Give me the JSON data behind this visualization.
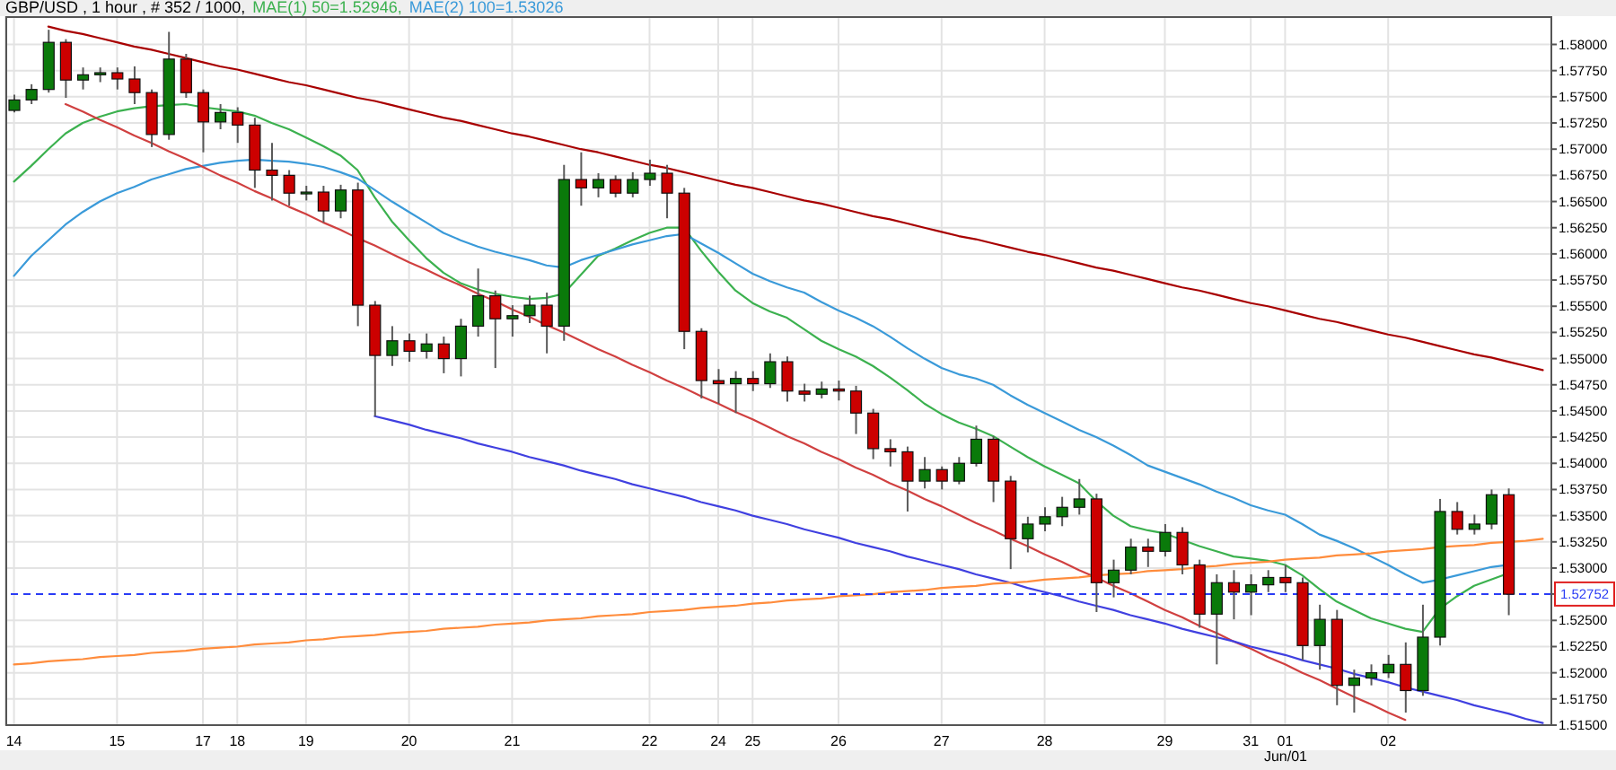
{
  "chart_data": {
    "type": "candlestick",
    "title": "GBP/USD , 1 hour , # 352 / 1000,",
    "categories": [
      "14",
      null,
      null,
      null,
      null,
      null,
      "15",
      null,
      null,
      null,
      null,
      "17",
      null,
      "18",
      null,
      null,
      null,
      "19",
      null,
      null,
      null,
      null,
      null,
      "20",
      null,
      null,
      null,
      null,
      null,
      "21",
      null,
      null,
      null,
      null,
      null,
      null,
      null,
      "22",
      null,
      null,
      null,
      "24",
      null,
      "25",
      null,
      null,
      null,
      null,
      "26",
      null,
      null,
      null,
      null,
      null,
      "27",
      null,
      null,
      null,
      null,
      null,
      "28",
      null,
      null,
      null,
      null,
      null,
      null,
      "29",
      null,
      null,
      null,
      null,
      "31",
      null,
      "01",
      null,
      null,
      null,
      null,
      null,
      "02",
      null,
      null,
      null,
      null,
      null,
      null,
      null,
      null,
      null
    ],
    "ohlc": [
      [
        1.5737,
        1.5752,
        1.5735,
        1.5747
      ],
      [
        1.5747,
        1.5762,
        1.5743,
        1.5757
      ],
      [
        1.5757,
        1.5814,
        1.5754,
        1.5802
      ],
      [
        1.5802,
        1.5805,
        1.5749,
        1.5766
      ],
      [
        1.5766,
        1.5778,
        1.5757,
        1.5771
      ],
      [
        1.5771,
        1.5778,
        1.5764,
        1.5773
      ],
      [
        1.5773,
        1.5778,
        1.5757,
        1.5767
      ],
      [
        1.5767,
        1.5779,
        1.5743,
        1.5754
      ],
      [
        1.5754,
        1.5757,
        1.5702,
        1.5714
      ],
      [
        1.5714,
        1.5812,
        1.5709,
        1.5786
      ],
      [
        1.5786,
        1.5791,
        1.5749,
        1.5754
      ],
      [
        1.5754,
        1.5757,
        1.5697,
        1.5726
      ],
      [
        1.5726,
        1.5743,
        1.5719,
        1.5735
      ],
      [
        1.5735,
        1.574,
        1.5706,
        1.5723
      ],
      [
        1.5723,
        1.573,
        1.5663,
        1.568
      ],
      [
        1.568,
        1.5706,
        1.5651,
        1.5675
      ],
      [
        1.5675,
        1.568,
        1.5646,
        1.5658
      ],
      [
        1.5658,
        1.5665,
        1.5651,
        1.5659
      ],
      [
        1.5659,
        1.5665,
        1.563,
        1.5641
      ],
      [
        1.5641,
        1.5666,
        1.5634,
        1.5661
      ],
      [
        1.5661,
        1.5668,
        1.5531,
        1.5551
      ],
      [
        1.5551,
        1.5555,
        1.5445,
        1.5503
      ],
      [
        1.5503,
        1.5531,
        1.5493,
        1.5517
      ],
      [
        1.5517,
        1.5524,
        1.5497,
        1.5507
      ],
      [
        1.5507,
        1.5524,
        1.55,
        1.5514
      ],
      [
        1.5514,
        1.5521,
        1.5486,
        1.55
      ],
      [
        1.55,
        1.5538,
        1.5483,
        1.5531
      ],
      [
        1.5531,
        1.5586,
        1.5521,
        1.556
      ],
      [
        1.556,
        1.5565,
        1.5491,
        1.5538
      ],
      [
        1.5538,
        1.5551,
        1.5521,
        1.5541
      ],
      [
        1.5541,
        1.556,
        1.5534,
        1.5551
      ],
      [
        1.5551,
        1.5563,
        1.5505,
        1.5531
      ],
      [
        1.5531,
        1.5685,
        1.5517,
        1.5671
      ],
      [
        1.5671,
        1.5697,
        1.5646,
        1.5663
      ],
      [
        1.5663,
        1.5677,
        1.5654,
        1.5671
      ],
      [
        1.5671,
        1.5675,
        1.5654,
        1.5658
      ],
      [
        1.5658,
        1.5678,
        1.5654,
        1.5671
      ],
      [
        1.5671,
        1.569,
        1.5665,
        1.5677
      ],
      [
        1.5677,
        1.5685,
        1.5634,
        1.5658
      ],
      [
        1.5658,
        1.5663,
        1.5509,
        1.5526
      ],
      [
        1.5526,
        1.5529,
        1.5462,
        1.5479
      ],
      [
        1.5479,
        1.549,
        1.5457,
        1.5476
      ],
      [
        1.5476,
        1.5488,
        1.5448,
        1.5481
      ],
      [
        1.5481,
        1.5488,
        1.5469,
        1.5476
      ],
      [
        1.5476,
        1.5505,
        1.5472,
        1.5497
      ],
      [
        1.5497,
        1.5502,
        1.5459,
        1.5469
      ],
      [
        1.5469,
        1.5476,
        1.5459,
        1.5466
      ],
      [
        1.5466,
        1.5478,
        1.5462,
        1.5471
      ],
      [
        1.5471,
        1.5479,
        1.546,
        1.5469
      ],
      [
        1.5469,
        1.5474,
        1.5428,
        1.5448
      ],
      [
        1.5448,
        1.5452,
        1.5404,
        1.5414
      ],
      [
        1.5414,
        1.5423,
        1.5397,
        1.5411
      ],
      [
        1.5411,
        1.5416,
        1.5354,
        1.5383
      ],
      [
        1.5383,
        1.5406,
        1.5376,
        1.5394
      ],
      [
        1.5394,
        1.5397,
        1.5375,
        1.5383
      ],
      [
        1.5383,
        1.5406,
        1.538,
        1.54
      ],
      [
        1.54,
        1.5436,
        1.5397,
        1.5423
      ],
      [
        1.5423,
        1.5426,
        1.5363,
        1.5383
      ],
      [
        1.5383,
        1.5388,
        1.5299,
        1.5328
      ],
      [
        1.5328,
        1.5349,
        1.5315,
        1.5342
      ],
      [
        1.5342,
        1.5358,
        1.5335,
        1.5349
      ],
      [
        1.5349,
        1.5368,
        1.534,
        1.5358
      ],
      [
        1.5358,
        1.5385,
        1.5351,
        1.5366
      ],
      [
        1.5366,
        1.5371,
        1.5258,
        1.5286
      ],
      [
        1.5286,
        1.5308,
        1.5272,
        1.5298
      ],
      [
        1.5298,
        1.5328,
        1.5294,
        1.532
      ],
      [
        1.532,
        1.5328,
        1.5301,
        1.5316
      ],
      [
        1.5316,
        1.5342,
        1.5311,
        1.5334
      ],
      [
        1.5334,
        1.5339,
        1.5294,
        1.5303
      ],
      [
        1.5303,
        1.5308,
        1.5243,
        1.5256
      ],
      [
        1.5256,
        1.5294,
        1.5208,
        1.5286
      ],
      [
        1.5286,
        1.5298,
        1.5251,
        1.5277
      ],
      [
        1.5277,
        1.5294,
        1.5255,
        1.5284
      ],
      [
        1.5284,
        1.5298,
        1.5277,
        1.5291
      ],
      [
        1.5291,
        1.5303,
        1.5277,
        1.5286
      ],
      [
        1.5286,
        1.5291,
        1.5212,
        1.5226
      ],
      [
        1.5226,
        1.5265,
        1.5203,
        1.5251
      ],
      [
        1.5251,
        1.526,
        1.5169,
        1.5188
      ],
      [
        1.5188,
        1.5203,
        1.5162,
        1.5195
      ],
      [
        1.5195,
        1.5208,
        1.5188,
        1.52
      ],
      [
        1.52,
        1.5217,
        1.5195,
        1.5208
      ],
      [
        1.5208,
        1.5229,
        1.5162,
        1.5183
      ],
      [
        1.5183,
        1.5265,
        1.5178,
        1.5234
      ],
      [
        1.5234,
        1.5366,
        1.5226,
        1.5354
      ],
      [
        1.5354,
        1.5363,
        1.5332,
        1.5337
      ],
      [
        1.5337,
        1.5351,
        1.5332,
        1.5342
      ],
      [
        1.5342,
        1.5375,
        1.5337,
        1.537
      ],
      [
        1.537,
        1.5376,
        1.5255,
        1.5275
      ],
      null,
      null
    ],
    "colors": [
      "#0a7a0a",
      "#0a7a0a",
      "#0a7a0a",
      "#cc0000",
      "#0a7a0a",
      "#0a7a0a",
      "#cc0000",
      "#cc0000",
      "#cc0000",
      "#0a7a0a",
      "#cc0000",
      "#cc0000",
      "#0a7a0a",
      "#cc0000",
      "#cc0000",
      "#cc0000",
      "#cc0000",
      "#0a7a0a",
      "#cc0000",
      "#0a7a0a",
      "#cc0000",
      "#cc0000",
      "#0a7a0a",
      "#cc0000",
      "#0a7a0a",
      "#cc0000",
      "#0a7a0a",
      "#0a7a0a",
      "#cc0000",
      "#0a7a0a",
      "#0a7a0a",
      "#cc0000",
      "#0a7a0a",
      "#cc0000",
      "#0a7a0a",
      "#cc0000",
      "#0a7a0a",
      "#0a7a0a",
      "#cc0000",
      "#cc0000",
      "#cc0000",
      "#cc0000",
      "#0a7a0a",
      "#cc0000",
      "#0a7a0a",
      "#cc0000",
      "#cc0000",
      "#0a7a0a",
      "#cc0000",
      "#cc0000",
      "#cc0000",
      "#cc0000",
      "#cc0000",
      "#0a7a0a",
      "#cc0000",
      "#0a7a0a",
      "#0a7a0a",
      "#cc0000",
      "#cc0000",
      "#0a7a0a",
      "#0a7a0a",
      "#0a7a0a",
      "#0a7a0a",
      "#cc0000",
      "#0a7a0a",
      "#0a7a0a",
      "#cc0000",
      "#0a7a0a",
      "#cc0000",
      "#cc0000",
      "#0a7a0a",
      "#cc0000",
      "#0a7a0a",
      "#0a7a0a",
      "#cc0000",
      "#cc0000",
      "#0a7a0a",
      "#cc0000",
      "#0a7a0a",
      "#0a7a0a",
      "#0a7a0a",
      "#cc0000",
      "#0a7a0a",
      "#0a7a0a",
      "#cc0000",
      "#0a7a0a",
      "#0a7a0a",
      "#cc0000",
      null,
      null
    ],
    "series": [
      {
        "name": "MAE(1) 50=1.52946,",
        "type": "line",
        "color": "#3cb14f",
        "values": [
          1.5669,
          1.5684,
          1.57,
          1.5715,
          1.5725,
          1.5731,
          1.5736,
          1.5739,
          1.5741,
          1.5742,
          1.5743,
          1.574,
          1.5738,
          1.5736,
          1.5732,
          1.5725,
          1.5719,
          1.5711,
          1.5703,
          1.5694,
          1.568,
          1.5654,
          1.5631,
          1.5613,
          1.5596,
          1.5582,
          1.5572,
          1.5566,
          1.5562,
          1.5559,
          1.5557,
          1.5558,
          1.5562,
          1.558,
          1.5598,
          1.5605,
          1.5613,
          1.562,
          1.5625,
          1.5625,
          1.5603,
          1.5583,
          1.5565,
          1.5553,
          1.5545,
          1.5539,
          1.5528,
          1.5517,
          1.5509,
          1.5502,
          1.5493,
          1.5482,
          1.547,
          1.5457,
          1.5447,
          1.5439,
          1.5433,
          1.5426,
          1.5416,
          1.5406,
          1.5397,
          1.5389,
          1.5381,
          1.5364,
          1.535,
          1.534,
          1.5336,
          1.5333,
          1.5327,
          1.5321,
          1.5316,
          1.5311,
          1.5309,
          1.5307,
          1.5303,
          1.5293,
          1.528,
          1.5268,
          1.526,
          1.5252,
          1.5247,
          1.5242,
          1.5239,
          1.5261,
          1.5273,
          1.5283,
          1.5289,
          1.5295,
          null,
          null
        ]
      },
      {
        "name": "MAE(2) 100=1.53026",
        "type": "line",
        "color": "#3a9ad9",
        "values": [
          1.5579,
          1.5598,
          1.5613,
          1.5628,
          1.564,
          1.565,
          1.5658,
          1.5664,
          1.5671,
          1.5676,
          1.5681,
          1.5684,
          1.5687,
          1.5689,
          1.569,
          1.5689,
          1.5688,
          1.5686,
          1.5683,
          1.5678,
          1.5672,
          1.5661,
          1.565,
          1.564,
          1.563,
          1.562,
          1.5613,
          1.5607,
          1.5602,
          1.5598,
          1.5594,
          1.5589,
          1.5587,
          1.5594,
          1.5599,
          1.5604,
          1.5609,
          1.5613,
          1.5617,
          1.5619,
          1.561,
          1.5601,
          1.5591,
          1.5581,
          1.5574,
          1.5568,
          1.5563,
          1.5554,
          1.5546,
          1.5539,
          1.5531,
          1.5521,
          1.551,
          1.55,
          1.5491,
          1.5485,
          1.5481,
          1.5475,
          1.5465,
          1.5456,
          1.5448,
          1.544,
          1.5432,
          1.5425,
          1.5417,
          1.5408,
          1.5398,
          1.5392,
          1.5386,
          1.538,
          1.5373,
          1.5367,
          1.536,
          1.5355,
          1.5351,
          1.5342,
          1.5332,
          1.5326,
          1.5319,
          1.5311,
          1.5303,
          1.5294,
          1.5286,
          1.5289,
          1.5293,
          1.5297,
          1.5301,
          1.5303,
          null,
          null
        ]
      },
      {
        "type": "line",
        "color": "#a80000",
        "values": [
          null,
          null,
          1.5817,
          1.5813,
          1.581,
          1.5806,
          1.5802,
          1.5798,
          1.5795,
          1.5791,
          1.5787,
          1.5783,
          1.5779,
          1.5776,
          1.5772,
          1.5768,
          1.5764,
          1.5761,
          1.5757,
          1.5753,
          1.5749,
          1.5746,
          1.5742,
          1.5738,
          1.5734,
          1.573,
          1.5727,
          1.5723,
          1.5719,
          1.5715,
          1.5712,
          1.5708,
          1.5704,
          1.57,
          1.5697,
          1.5693,
          1.5689,
          1.5685,
          1.5682,
          1.5678,
          1.5674,
          1.567,
          1.5666,
          1.5663,
          1.5659,
          1.5655,
          1.5651,
          1.5648,
          1.5644,
          1.564,
          1.5636,
          1.5633,
          1.5629,
          1.5625,
          1.5621,
          1.5617,
          1.5614,
          1.561,
          1.5606,
          1.5602,
          1.5599,
          1.5595,
          1.5591,
          1.5587,
          1.5584,
          1.558,
          1.5576,
          1.5572,
          1.5568,
          1.5565,
          1.5561,
          1.5557,
          1.5553,
          1.555,
          1.5546,
          1.5542,
          1.5538,
          1.5535,
          1.5531,
          1.5527,
          1.5523,
          1.552,
          1.5516,
          1.5512,
          1.5508,
          1.5504,
          1.5501,
          1.5497,
          1.5493,
          1.5489
        ]
      },
      {
        "type": "line",
        "color": "#d04040",
        "values": [
          null,
          null,
          null,
          1.5743,
          1.5736,
          1.5728,
          1.5721,
          1.5713,
          1.5706,
          1.5698,
          1.5691,
          1.5683,
          1.5675,
          1.5668,
          1.566,
          1.5653,
          1.5645,
          1.5638,
          1.563,
          1.5623,
          1.5615,
          1.5608,
          1.56,
          1.5592,
          1.5585,
          1.5577,
          1.557,
          1.5562,
          1.5555,
          1.5547,
          1.554,
          1.5532,
          1.5525,
          1.5517,
          1.5509,
          1.5502,
          1.5494,
          1.5487,
          1.5479,
          1.5472,
          1.5464,
          1.5457,
          1.5449,
          1.5442,
          1.5434,
          1.5426,
          1.5419,
          1.5411,
          1.5404,
          1.5396,
          1.5389,
          1.5381,
          1.5374,
          1.5366,
          1.5359,
          1.5351,
          1.5343,
          1.5336,
          1.5328,
          1.5321,
          1.5313,
          1.5306,
          1.5298,
          1.5291,
          1.5283,
          1.5276,
          1.5268,
          1.526,
          1.5253,
          1.5245,
          1.5238,
          1.523,
          1.5223,
          1.5215,
          1.5208,
          1.52,
          1.5193,
          1.5185,
          1.5177,
          1.517,
          1.5162,
          1.5155,
          null,
          null,
          null,
          null,
          null,
          null,
          null,
          null
        ]
      },
      {
        "type": "line",
        "color": "#4040e0",
        "values": [
          null,
          null,
          null,
          null,
          null,
          null,
          null,
          null,
          null,
          null,
          null,
          null,
          null,
          null,
          null,
          null,
          null,
          null,
          null,
          null,
          null,
          1.5445,
          1.5441,
          1.5437,
          1.5432,
          1.5428,
          1.5424,
          1.5419,
          1.5415,
          1.5411,
          1.5406,
          1.5402,
          1.5398,
          1.5393,
          1.5389,
          1.5385,
          1.538,
          1.5376,
          1.5372,
          1.5368,
          1.5363,
          1.5359,
          1.5355,
          1.535,
          1.5346,
          1.5342,
          1.5337,
          1.5333,
          1.5329,
          1.5324,
          1.532,
          1.5316,
          1.5311,
          1.5307,
          1.5303,
          1.5299,
          1.5294,
          1.529,
          1.5286,
          1.5281,
          1.5277,
          1.5273,
          1.5268,
          1.5264,
          1.526,
          1.5255,
          1.5251,
          1.5247,
          1.5242,
          1.5238,
          1.5234,
          1.523,
          1.5225,
          1.5221,
          1.5217,
          1.5212,
          1.5208,
          1.5204,
          1.5199,
          1.5195,
          1.5191,
          1.5186,
          1.5182,
          1.5178,
          1.5174,
          1.5169,
          1.5165,
          1.5161,
          1.5156,
          1.5152
        ]
      },
      {
        "type": "line",
        "color": "#ff8c3c",
        "values": [
          1.5208,
          1.5209,
          1.5211,
          1.5212,
          1.5213,
          1.5215,
          1.5216,
          1.5217,
          1.5219,
          1.522,
          1.5221,
          1.5223,
          1.5224,
          1.5225,
          1.5227,
          1.5228,
          1.5229,
          1.5231,
          1.5232,
          1.5234,
          1.5235,
          1.5236,
          1.5238,
          1.5239,
          1.524,
          1.5242,
          1.5243,
          1.5244,
          1.5246,
          1.5247,
          1.5248,
          1.525,
          1.5251,
          1.5252,
          1.5254,
          1.5255,
          1.5256,
          1.5258,
          1.5259,
          1.526,
          1.5262,
          1.5263,
          1.5264,
          1.5266,
          1.5267,
          1.5269,
          1.527,
          1.5271,
          1.5273,
          1.5274,
          1.5275,
          1.5277,
          1.5278,
          1.5279,
          1.5281,
          1.5282,
          1.5283,
          1.5285,
          1.5286,
          1.5287,
          1.5289,
          1.529,
          1.5291,
          1.5293,
          1.5294,
          1.5295,
          1.5297,
          1.5298,
          1.5299,
          1.5301,
          1.5302,
          1.5304,
          1.5305,
          1.5306,
          1.5308,
          1.5309,
          1.531,
          1.5312,
          1.5313,
          1.5314,
          1.5316,
          1.5317,
          1.5318,
          1.532,
          1.5321,
          1.5322,
          1.5324,
          1.5325,
          1.5326,
          1.5328
        ]
      }
    ],
    "ylim": [
      1.515,
      1.5827
    ],
    "yticks": [
      {
        "value": 1.515,
        "label": "1.51500"
      },
      {
        "value": 1.5175,
        "label": "1.51750"
      },
      {
        "value": 1.52,
        "label": "1.52000"
      },
      {
        "value": 1.5225,
        "label": "1.52250"
      },
      {
        "value": 1.525,
        "label": "1.52500"
      },
      1.52752,
      {
        "value": 1.53,
        "label": "1.53000"
      },
      {
        "value": 1.5325,
        "label": "1.53250"
      },
      {
        "value": 1.535,
        "label": "1.53500"
      },
      {
        "value": 1.5375,
        "label": "1.53750"
      },
      {
        "value": 1.54,
        "label": "1.54000"
      },
      {
        "value": 1.5425,
        "label": "1.54250"
      },
      {
        "value": 1.545,
        "label": "1.54500"
      },
      {
        "value": 1.5475,
        "label": "1.54750"
      },
      {
        "value": 1.55,
        "label": "1.55000"
      },
      {
        "value": 1.5525,
        "label": "1.55250"
      },
      {
        "value": 1.555,
        "label": "1.55500"
      },
      {
        "value": 1.5575,
        "label": "1.55750"
      },
      {
        "value": 1.56,
        "label": "1.56000"
      },
      {
        "value": 1.5625,
        "label": "1.56250"
      },
      {
        "value": 1.565,
        "label": "1.56500"
      },
      {
        "value": 1.5675,
        "label": "1.56750"
      },
      {
        "value": 1.57,
        "label": "1.57000"
      },
      {
        "value": 1.5725,
        "label": "1.57250"
      },
      {
        "value": 1.575,
        "label": "1.57500"
      },
      {
        "value": 1.5775,
        "label": "1.57750"
      },
      {
        "value": 1.58,
        "label": "1.58000"
      }
    ],
    "ref_lines": [
      {
        "axis": "y",
        "value": 1.52752,
        "color": "#2a3cf5",
        "line_style": "dashed"
      }
    ],
    "annotations": [
      "Jun/01"
    ],
    "grid": true,
    "legend": "top left"
  }
}
